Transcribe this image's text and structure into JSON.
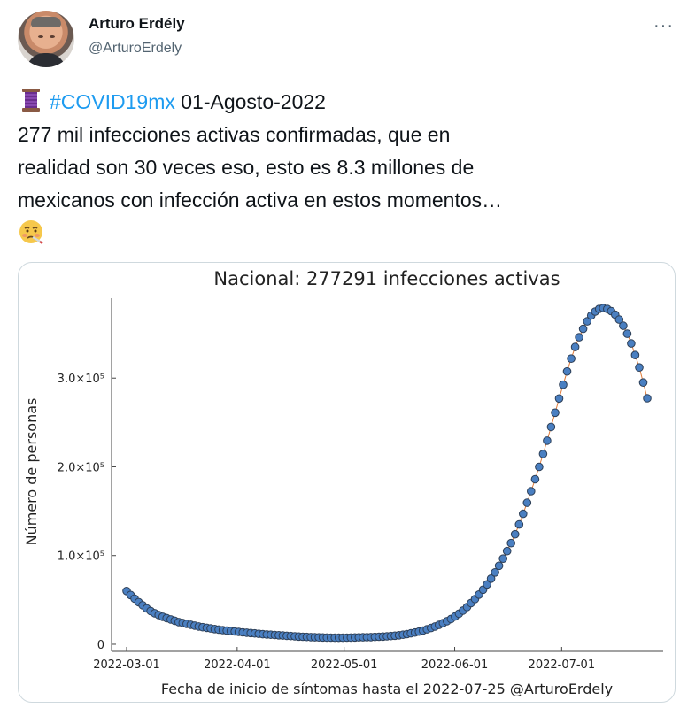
{
  "author": {
    "name": "Arturo Erdély",
    "handle": "@ArturoErdely"
  },
  "tweet": {
    "thread_icon": "spool-of-thread-icon",
    "hashtag": "#COVID19mx",
    "date_text": " 01-Agosto-2022",
    "line2": "277 mil infecciones activas confirmadas, que en",
    "line3": "realidad son 30 veces eso, esto es 8.3 millones de",
    "line4": "mexicanos con infección activa en estos momentos…",
    "end_emoji": "sick-face-icon"
  },
  "more_label": "···",
  "colors": {
    "link": "#1d9bf0",
    "marker": "#4a7fc1",
    "marker_edge": "#2d3f57",
    "line": "#e07b39"
  },
  "chart_data": {
    "type": "scatter",
    "title": "Nacional:  277291 infecciones activas",
    "xlabel": "Fecha de inicio de síntomas hasta el 2022-07-25 @ArturoErdely",
    "ylabel": "Número de personas",
    "x_ticks": [
      "2022-03-01",
      "2022-04-01",
      "2022-05-01",
      "2022-06-01",
      "2022-07-01"
    ],
    "y_ticks": [
      "0",
      "1.0×10⁵",
      "2.0×10⁵",
      "3.0×10⁵"
    ],
    "y_tick_values": [
      0,
      100000,
      200000,
      300000
    ],
    "ylim": [
      -8000,
      390000
    ],
    "x_start": "2022-03-01",
    "x_end": "2022-07-25",
    "grid": false,
    "legend": "none",
    "series": [
      {
        "values": [
          60000,
          55500,
          51500,
          47500,
          44000,
          40500,
          37500,
          35000,
          33000,
          31000,
          29500,
          28000,
          26500,
          25000,
          24000,
          23000,
          22000,
          21000,
          20000,
          19200,
          18500,
          17800,
          17100,
          16500,
          15900,
          15400,
          14900,
          14400,
          13900,
          13400,
          13000,
          12600,
          12200,
          11800,
          11400,
          11100,
          10800,
          10500,
          10200,
          9900,
          9600,
          9300,
          9000,
          8700,
          8500,
          8300,
          8100,
          7900,
          7800,
          7700,
          7600,
          7500,
          7400,
          7400,
          7400,
          7500,
          7600,
          7700,
          7800,
          7900,
          8000,
          8100,
          8300,
          8500,
          8700,
          9000,
          9300,
          9700,
          10200,
          10800,
          11500,
          12300,
          13200,
          14200,
          15400,
          16800,
          18300,
          20000,
          21800,
          23800,
          26000,
          28500,
          31300,
          34500,
          38000,
          42000,
          46500,
          51000,
          56000,
          61500,
          67500,
          74000,
          81000,
          88500,
          96500,
          105000,
          114000,
          124000,
          135000,
          147000,
          159500,
          172500,
          186000,
          200000,
          214500,
          229500,
          245000,
          261000,
          277000,
          292500,
          307500,
          322000,
          335000,
          346000,
          355500,
          364000,
          370500,
          375000,
          378000,
          379000,
          378000,
          375500,
          371500,
          366000,
          359000,
          350000,
          339000,
          326000,
          312000,
          295000,
          277291
        ]
      }
    ]
  }
}
